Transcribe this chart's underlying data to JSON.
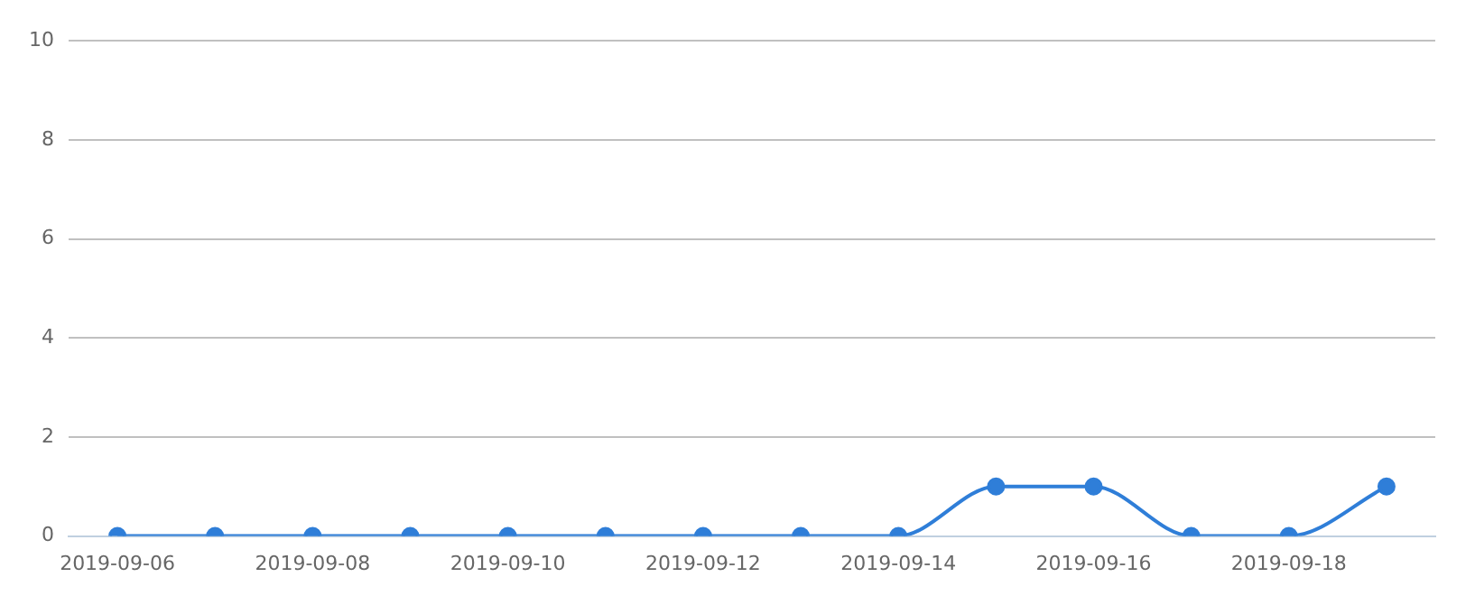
{
  "chart_data": {
    "type": "line",
    "categories": [
      "2019-09-06",
      null,
      "2019-09-08",
      null,
      "2019-09-10",
      null,
      "2019-09-12",
      null,
      "2019-09-14",
      null,
      "2019-09-16",
      null,
      "2019-09-18",
      null
    ],
    "series": [
      {
        "color": "#2f7ed8",
        "values": [
          0,
          0,
          0,
          0,
          0,
          0,
          0,
          0,
          0,
          1,
          1,
          0,
          0,
          1
        ]
      }
    ],
    "ylim": [
      0,
      10
    ],
    "yticks": [
      0,
      2,
      4,
      6,
      8,
      10
    ],
    "grid": "y",
    "legend": false,
    "marker": "circle"
  }
}
